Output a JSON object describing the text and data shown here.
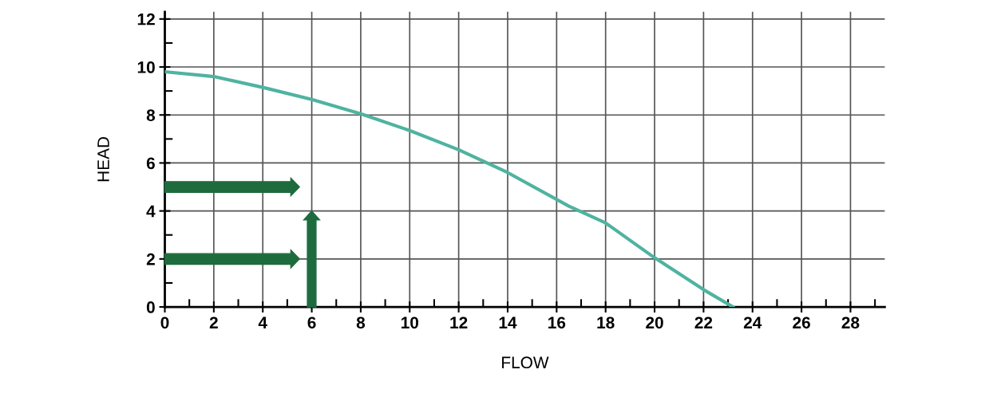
{
  "chart_data": {
    "type": "line",
    "xlabel": "FLOW",
    "ylabel": "HEAD",
    "series": [
      {
        "color": "#4fb3a0",
        "x": [
          0,
          2,
          4,
          6,
          8,
          10,
          12,
          14,
          16.5,
          18,
          20,
          22,
          23.2
        ],
        "values": [
          9.8,
          9.6,
          9.15,
          8.65,
          8.05,
          7.35,
          6.55,
          5.6,
          4.2,
          3.5,
          2.05,
          0.72,
          0
        ]
      }
    ],
    "xlim": [
      0,
      29.4
    ],
    "ylim": [
      0,
      12.3
    ],
    "xticks": [
      0,
      2,
      4,
      6,
      8,
      10,
      12,
      14,
      16,
      18,
      20,
      22,
      24,
      26,
      28
    ],
    "yticks": [
      0,
      2,
      4,
      6,
      8,
      10,
      12
    ],
    "grid": true,
    "marker": "none",
    "line_style": "solid"
  }
}
